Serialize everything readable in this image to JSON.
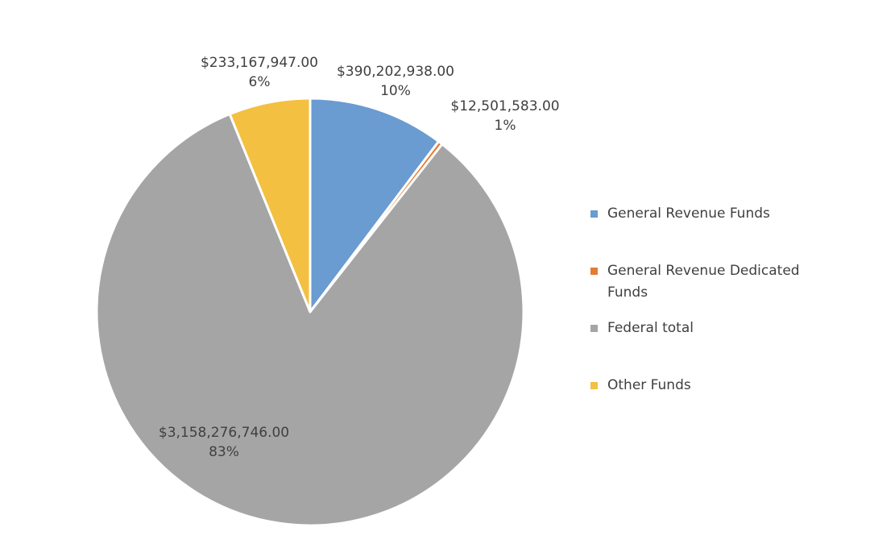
{
  "chart_data": {
    "type": "pie",
    "title": "",
    "categories": [
      "General Revenue Funds",
      "General Revenue Dedicated Funds",
      "Federal total",
      "Other Funds"
    ],
    "values": [
      390202938.0,
      12501583.0,
      3158276746.0,
      233167947.0
    ],
    "colors": [
      "#6a9bd1",
      "#e37d35",
      "#a5a5a5",
      "#f3c042"
    ],
    "value_labels": [
      "$390,202,938.00",
      "$12,501,583.00",
      "$3,158,276,746.00",
      "$233,167,947.00"
    ],
    "percent_labels": [
      "10%",
      "1%",
      "83%",
      "6%"
    ],
    "start_angle_deg": 0,
    "direction": "clockwise",
    "legend_position": "right"
  }
}
